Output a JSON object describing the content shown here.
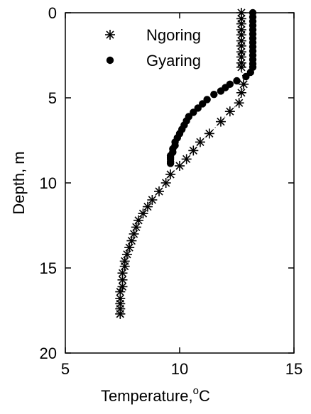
{
  "chart_data": {
    "type": "scatter",
    "xlabel": "Temperature,",
    "xlabel_unit_sup": "o",
    "xlabel_unit": "C",
    "ylabel": "Depth, m",
    "xlim": [
      5,
      15
    ],
    "ylim": [
      20,
      0
    ],
    "y_inverted": true,
    "grid": false,
    "legend_position": "top-left",
    "xticks": [
      "5",
      "10",
      "15"
    ],
    "yticks": [
      "0",
      "5",
      "10",
      "15",
      "20"
    ],
    "series": [
      {
        "name": "Ngoring",
        "marker": "asterisk",
        "x": [
          12.7,
          12.7,
          12.7,
          12.7,
          12.7,
          12.7,
          12.7,
          12.7,
          12.7,
          12.7,
          12.7,
          12.8,
          12.7,
          12.6,
          12.2,
          11.8,
          11.3,
          10.9,
          10.6,
          10.3,
          10.0,
          9.6,
          9.4,
          9.1,
          8.8,
          8.6,
          8.4,
          8.2,
          8.1,
          8.0,
          7.9,
          7.8,
          7.7,
          7.6,
          7.6,
          7.5,
          7.5,
          7.5,
          7.4,
          7.4,
          7.4,
          7.4,
          7.4,
          7.4
        ],
        "y": [
          0.0,
          0.35,
          0.65,
          1.0,
          1.3,
          1.65,
          1.95,
          2.3,
          2.6,
          2.95,
          3.2,
          4.2,
          4.7,
          5.3,
          5.8,
          6.4,
          7.1,
          7.6,
          8.1,
          8.6,
          9.0,
          9.5,
          10.0,
          10.5,
          11.0,
          11.4,
          11.8,
          12.2,
          12.6,
          13.0,
          13.4,
          13.8,
          14.2,
          14.6,
          14.9,
          15.3,
          15.7,
          16.1,
          16.4,
          16.8,
          17.1,
          17.4,
          17.7,
          17.7
        ],
        "connector": "dotted"
      },
      {
        "name": "Gyaring",
        "marker": "filled-circle",
        "x": [
          13.2,
          13.2,
          13.2,
          13.2,
          13.2,
          13.2,
          13.2,
          13.2,
          13.2,
          13.2,
          13.2,
          13.2,
          13.2,
          13.2,
          13.1,
          12.9,
          12.5,
          12.2,
          12.0,
          11.8,
          11.5,
          11.2,
          11.0,
          10.8,
          10.6,
          10.4,
          10.3,
          10.2,
          10.1,
          10.0,
          9.9,
          9.8,
          9.8,
          9.7,
          9.7,
          9.6,
          9.6,
          9.6,
          9.6,
          9.6
        ],
        "y": [
          0.0,
          0.25,
          0.5,
          0.75,
          1.0,
          1.25,
          1.5,
          1.75,
          2.0,
          2.25,
          2.5,
          2.75,
          3.0,
          3.2,
          3.5,
          3.75,
          4.0,
          4.2,
          4.4,
          4.6,
          4.8,
          5.1,
          5.35,
          5.6,
          5.85,
          6.1,
          6.35,
          6.6,
          6.85,
          7.1,
          7.35,
          7.6,
          7.8,
          8.0,
          8.2,
          8.4,
          8.5,
          8.6,
          8.75,
          8.85
        ]
      }
    ]
  }
}
